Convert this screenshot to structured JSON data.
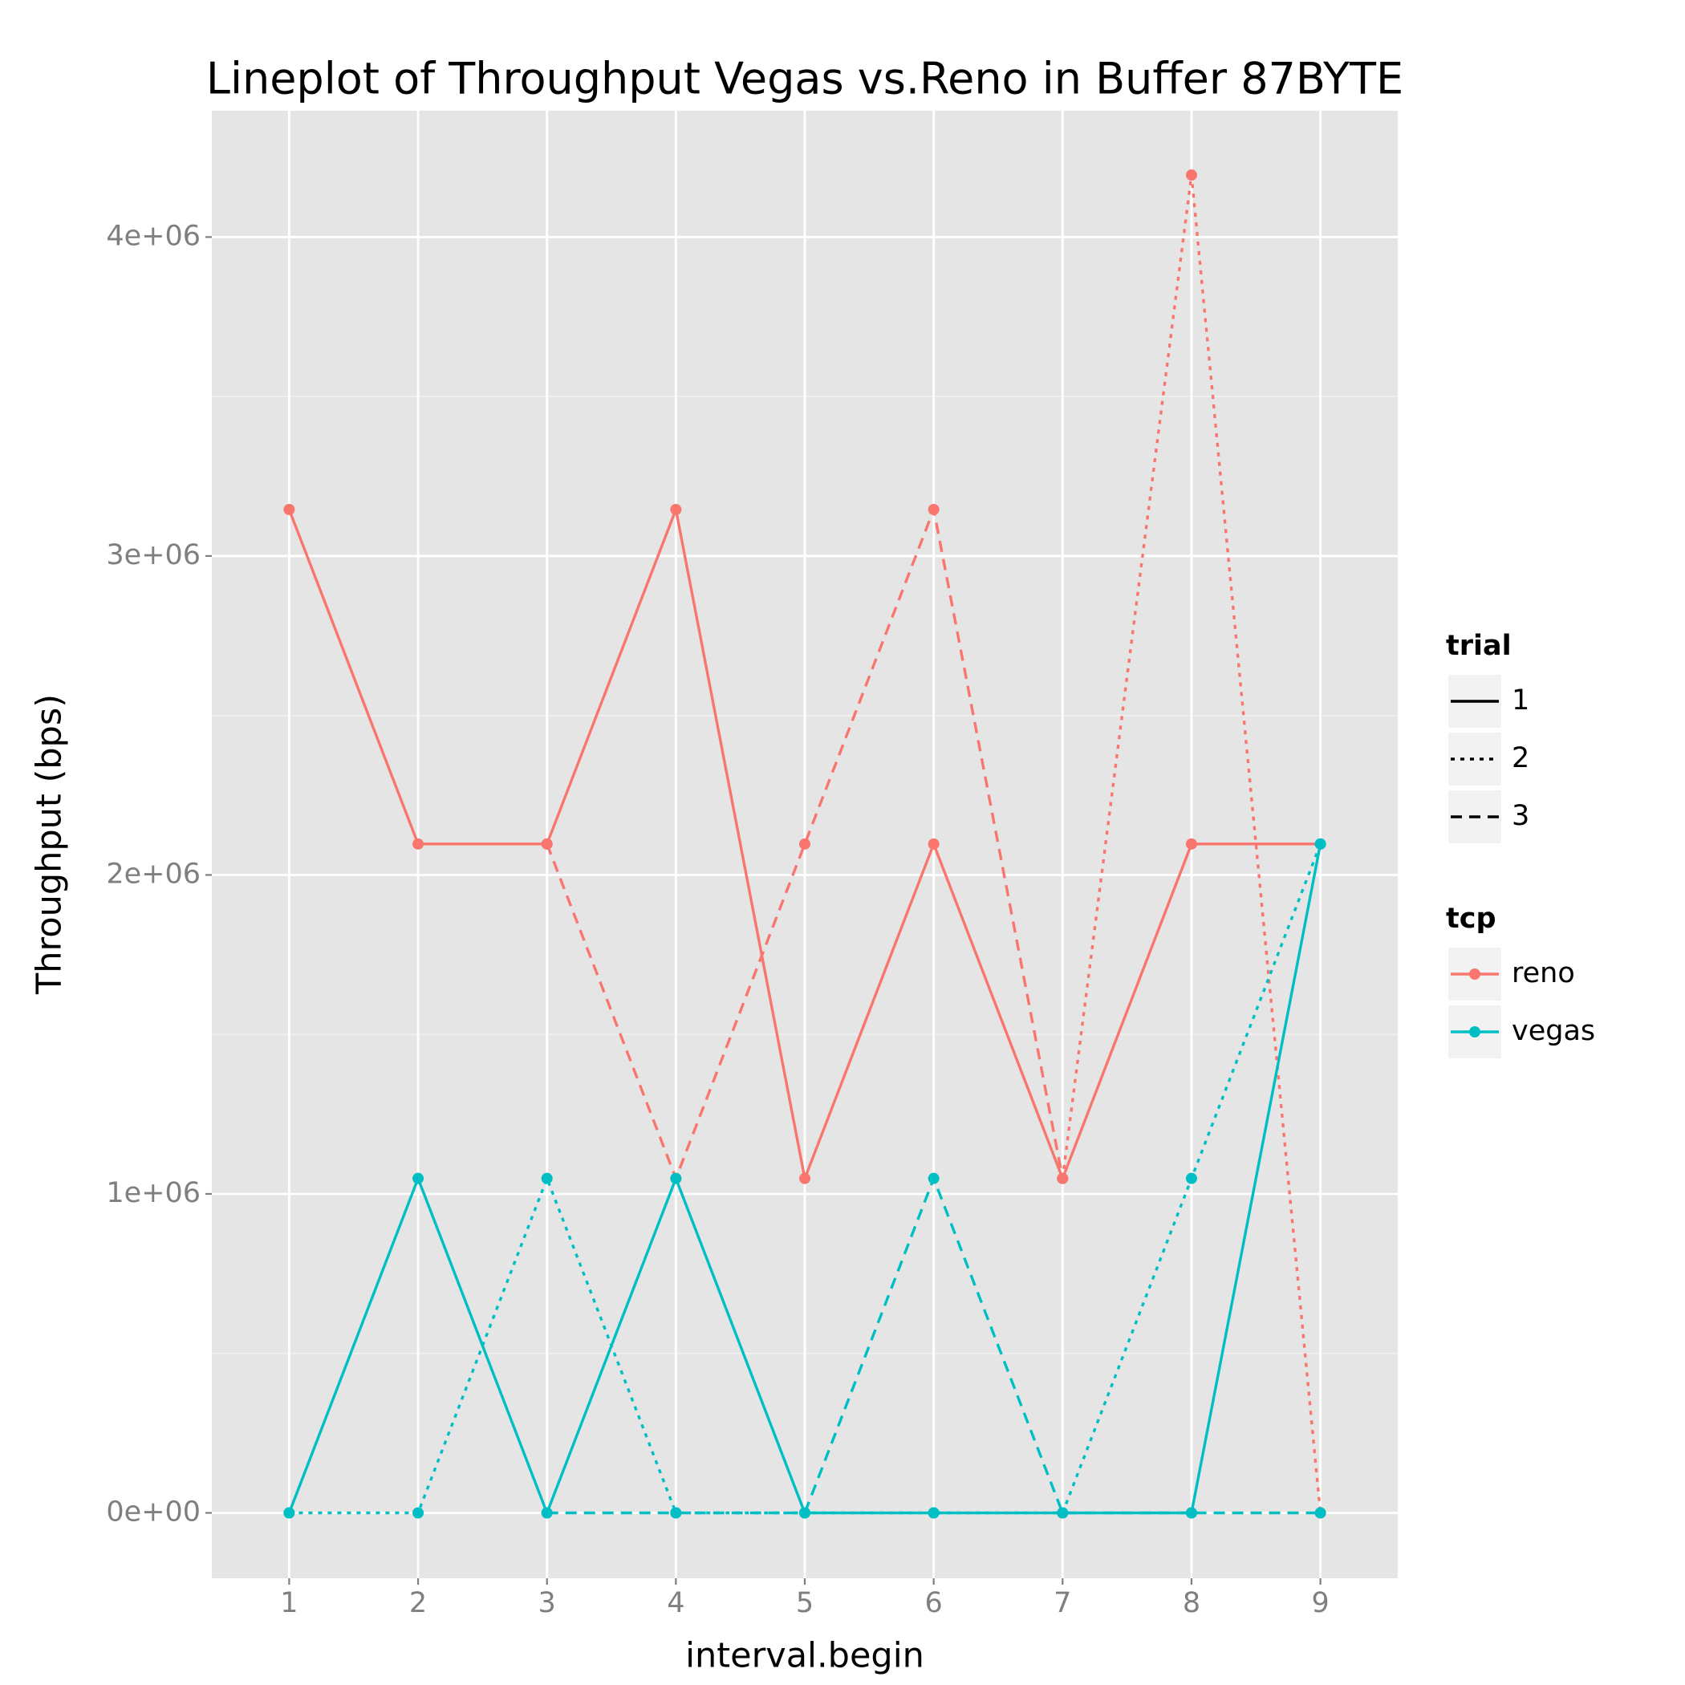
{
  "chart_data": {
    "type": "line",
    "title": "Lineplot of Throughput Vegas vs.Reno in Buffer 87BYTE",
    "x_label": "interval.begin",
    "y_label": "Throughput (bps)",
    "x": [
      1,
      2,
      3,
      4,
      5,
      6,
      7,
      8,
      9
    ],
    "xlim": [
      0.4,
      9.6
    ],
    "xticks": [
      1,
      2,
      3,
      4,
      5,
      6,
      7,
      8,
      9
    ],
    "ylim": [
      -205000,
      4396000
    ],
    "yticks": [
      {
        "value": 0,
        "label": "0e+00"
      },
      {
        "value": 1000000,
        "label": "1e+06"
      },
      {
        "value": 2000000,
        "label": "2e+06"
      },
      {
        "value": 3000000,
        "label": "3e+06"
      },
      {
        "value": 4000000,
        "label": "4e+06"
      }
    ],
    "grid": true,
    "series": [
      {
        "color": "#F8766D",
        "dash": "solid",
        "values": [
          3145728,
          2097152,
          2097152,
          3145728,
          1048576,
          2097152,
          1048576,
          2097152,
          2097152
        ]
      },
      {
        "color": "#F8766D",
        "dash": "dotted",
        "values": [
          null,
          null,
          null,
          null,
          null,
          null,
          1048576,
          4194304,
          0
        ]
      },
      {
        "color": "#F8766D",
        "dash": "dashed",
        "values": [
          null,
          null,
          2097152,
          1048576,
          2097152,
          3145728,
          1048576,
          null,
          null
        ]
      },
      {
        "color": "#00BFC4",
        "dash": "solid",
        "values": [
          0,
          1048576,
          0,
          1048576,
          0,
          0,
          0,
          0,
          2097152
        ]
      },
      {
        "color": "#00BFC4",
        "dash": "dotted",
        "values": [
          0,
          0,
          1048576,
          0,
          0,
          0,
          0,
          1048576,
          2097152
        ]
      },
      {
        "color": "#00BFC4",
        "dash": "dashed",
        "values": [
          null,
          null,
          0,
          0,
          0,
          1048576,
          0,
          0,
          0
        ]
      }
    ],
    "legends": [
      {
        "title": "trial",
        "items": [
          {
            "label": "1",
            "dash": "solid"
          },
          {
            "label": "2",
            "dash": "dotted"
          },
          {
            "label": "3",
            "dash": "dashed"
          }
        ]
      },
      {
        "title": "tcp",
        "items": [
          {
            "label": "reno",
            "color": "#F8766D"
          },
          {
            "label": "vegas",
            "color": "#00BFC4"
          }
        ]
      }
    ]
  }
}
